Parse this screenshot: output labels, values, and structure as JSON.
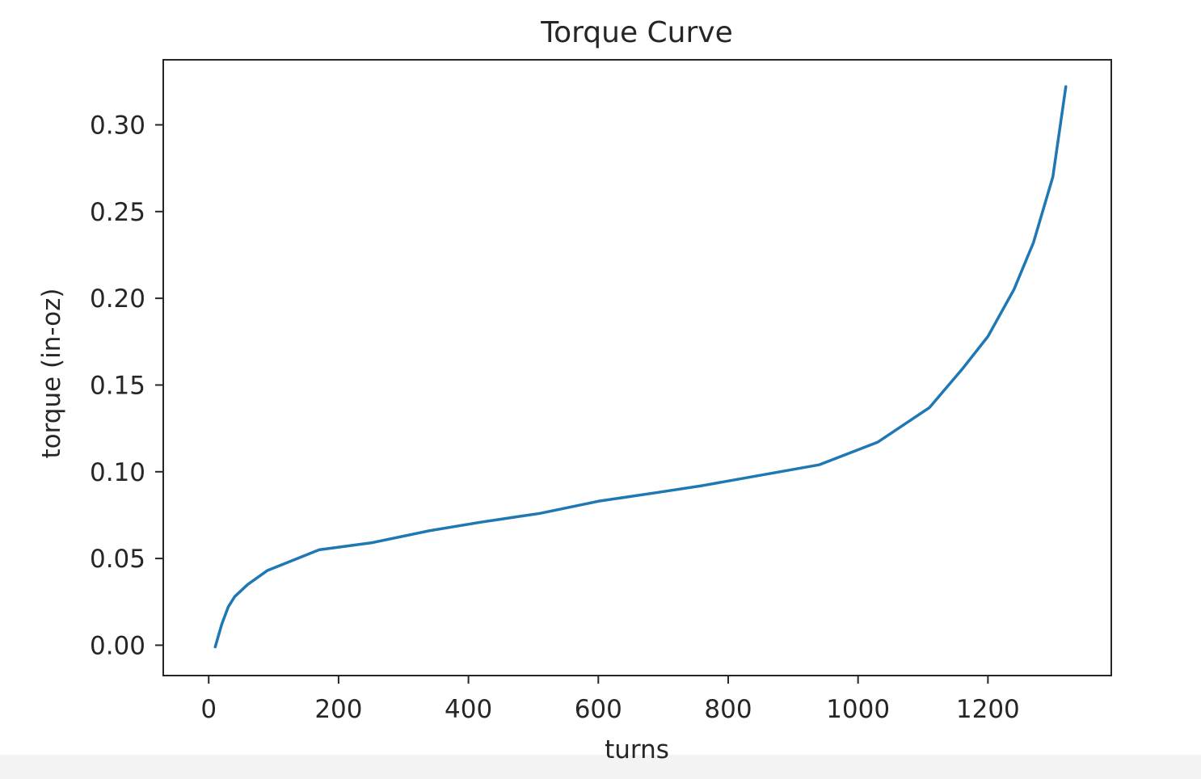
{
  "chart_data": {
    "type": "line",
    "title": "Torque Curve",
    "xlabel": "turns",
    "ylabel": "torque (in-oz)",
    "xlim": [
      -70,
      1390
    ],
    "ylim": [
      -0.0175,
      0.3375
    ],
    "xticks": [
      0,
      200,
      400,
      600,
      800,
      1000,
      1200
    ],
    "xtick_labels": [
      "0",
      "200",
      "400",
      "600",
      "800",
      "1000",
      "1200"
    ],
    "yticks": [
      0.0,
      0.05,
      0.1,
      0.15,
      0.2,
      0.25,
      0.3
    ],
    "ytick_labels": [
      "0.00",
      "0.05",
      "0.10",
      "0.15",
      "0.20",
      "0.25",
      "0.30"
    ],
    "grid": false,
    "legend": "none",
    "series": [
      {
        "color": "#1f77b4",
        "x": [
          10,
          20,
          30,
          40,
          60,
          90,
          130,
          170,
          250,
          340,
          420,
          510,
          600,
          690,
          760,
          850,
          940,
          1030,
          1110,
          1160,
          1200,
          1240,
          1270,
          1300,
          1320
        ],
        "y": [
          -0.001,
          0.012,
          0.022,
          0.028,
          0.035,
          0.043,
          0.049,
          0.055,
          0.059,
          0.066,
          0.071,
          0.076,
          0.083,
          0.088,
          0.092,
          0.098,
          0.104,
          0.117,
          0.137,
          0.159,
          0.178,
          0.205,
          0.232,
          0.27,
          0.322
        ]
      }
    ]
  }
}
